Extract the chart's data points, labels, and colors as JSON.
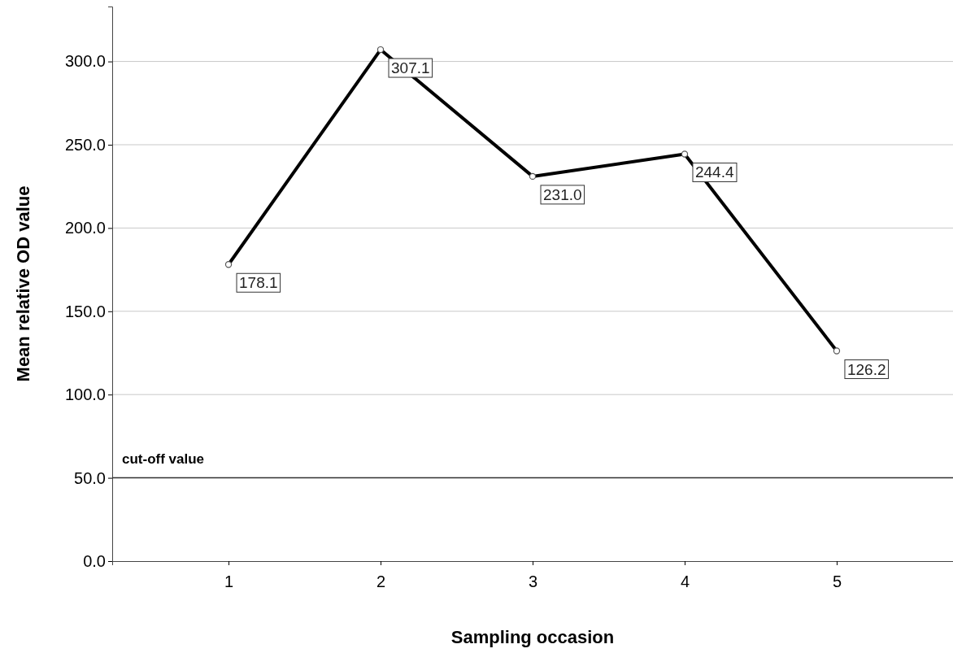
{
  "chart_data": {
    "type": "line",
    "xlabel": "Sampling occasion",
    "ylabel": "Mean relative OD value",
    "categories": [
      "1",
      "2",
      "3",
      "4",
      "5"
    ],
    "series": [
      {
        "color": "#000000",
        "values": [
          178.1,
          307.1,
          231.0,
          244.4,
          126.2
        ],
        "value_labels": [
          "178.1",
          "307.1",
          "231.0",
          "244.4",
          "126.2"
        ]
      }
    ],
    "ylim": [
      0,
      333
    ],
    "yticks": [
      {
        "value": 0,
        "label": "0.0"
      },
      {
        "value": 50,
        "label": "50.0"
      },
      {
        "value": 100,
        "label": "100.0"
      },
      {
        "value": 150,
        "label": "150.0"
      },
      {
        "value": 200,
        "label": "200.0"
      },
      {
        "value": 250,
        "label": "250.0"
      },
      {
        "value": 300,
        "label": "300.0"
      }
    ],
    "grid": "y",
    "marker": "circle",
    "line_style": "solid",
    "ref_lines": [
      {
        "axis": "y",
        "value": 50,
        "label": "cut-off value",
        "color": "#333333"
      }
    ]
  }
}
